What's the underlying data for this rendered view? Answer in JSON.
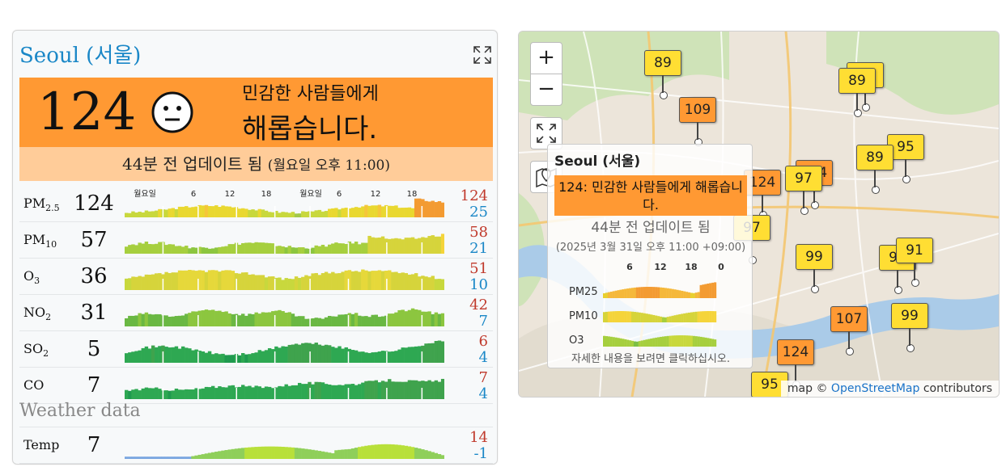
{
  "widget": {
    "city_title": "Seoul (서울)",
    "aqi": "124",
    "aqi_color": "#ff9933",
    "level_line1": "민감한 사람들에게",
    "level_line2": "해롭습니다.",
    "update_main": "44분 전 업데이트 됨",
    "update_time": "(월요일 오후 11:00)",
    "tick_labels": [
      "월요일",
      "6",
      "12",
      "18",
      "월요일",
      "6",
      "12",
      "18"
    ],
    "pollutants": [
      {
        "name": "PM",
        "sub": "2.5",
        "value": "124",
        "max": "124",
        "min": "25"
      },
      {
        "name": "PM",
        "sub": "10",
        "value": "57",
        "max": "58",
        "min": "21"
      },
      {
        "name": "O",
        "sub": "3",
        "value": "36",
        "max": "51",
        "min": "10"
      },
      {
        "name": "NO",
        "sub": "2",
        "value": "31",
        "max": "42",
        "min": "7"
      },
      {
        "name": "SO",
        "sub": "2",
        "value": "5",
        "max": "6",
        "min": "4"
      },
      {
        "name": "CO",
        "sub": "",
        "value": "7",
        "max": "7",
        "min": "4"
      }
    ],
    "weather_title": "Weather data",
    "temp": {
      "name": "Temp",
      "value": "7",
      "max": "14",
      "min": "-1"
    }
  },
  "map": {
    "zoom_in": "+",
    "zoom_out": "−",
    "markers": [
      {
        "v": "89",
        "c": "y"
      },
      {
        "v": "109",
        "c": "o"
      },
      {
        "v": "99",
        "c": "y"
      },
      {
        "v": "89",
        "c": "y"
      },
      {
        "v": "95",
        "c": "y"
      },
      {
        "v": "89",
        "c": "y"
      },
      {
        "v": "124",
        "c": "o"
      },
      {
        "v": "97",
        "c": "y"
      },
      {
        "v": "124",
        "c": "o"
      },
      {
        "v": "99",
        "c": "y"
      },
      {
        "v": "99",
        "c": "y"
      },
      {
        "v": "91",
        "c": "y"
      },
      {
        "v": "107",
        "c": "o"
      },
      {
        "v": "99",
        "c": "y"
      },
      {
        "v": "124",
        "c": "o"
      },
      {
        "v": "95",
        "c": "y"
      },
      {
        "v": "97",
        "c": "y"
      }
    ],
    "popup": {
      "title": "Seoul (서울)",
      "banner": "124: 민감한 사람들에게 해롭습니다.",
      "update": "44분 전 업데이트 됨",
      "date": "(2025년 3월 31일 오후 11:00 +09:00)",
      "ticks": [
        "6",
        "12",
        "18",
        "0"
      ],
      "labels": [
        "PM25",
        "PM10",
        "O3"
      ],
      "help": "자세한 내용을 보려면 클릭하십시오."
    },
    "attribution_prefix": "map © ",
    "attribution_link": "OpenStreetMap",
    "attribution_suffix": " contributors"
  }
}
